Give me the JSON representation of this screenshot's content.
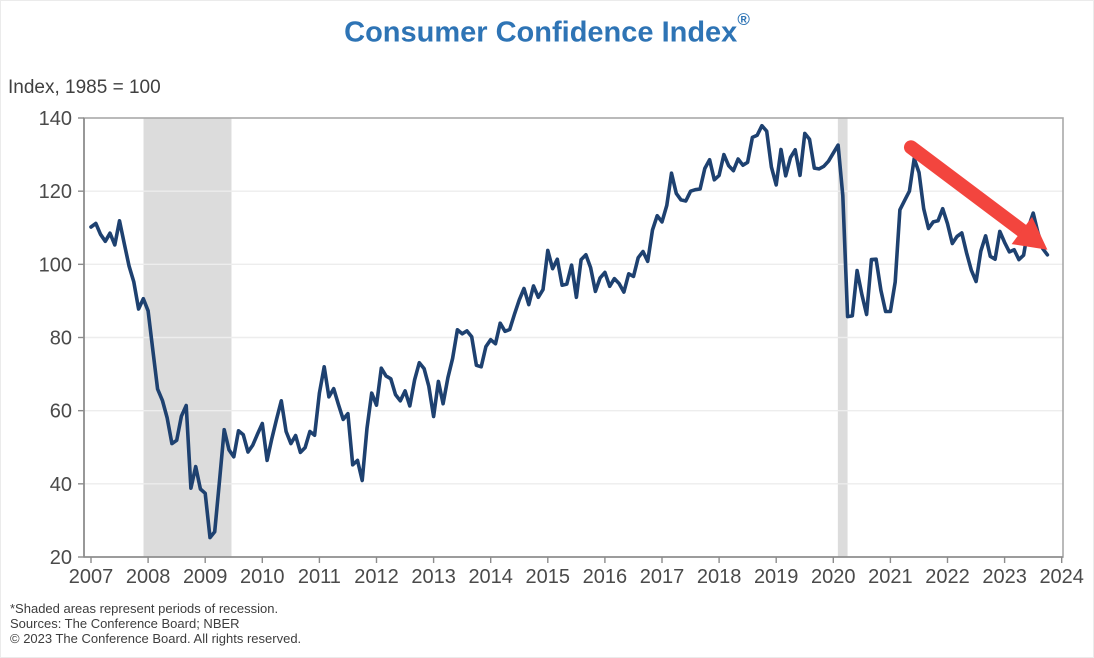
{
  "page": {
    "title": "Consumer Confidence Index",
    "registered_mark": "®",
    "unit_label": "Index, 1985 = 100"
  },
  "footnotes": {
    "line1": "*Shaded areas represent periods of recession.",
    "line2": "Sources: The Conference Board; NBER",
    "line3": "© 2023 The Conference Board. All rights reserved."
  },
  "chart_data": {
    "type": "line",
    "title": "Consumer Confidence Index®",
    "ylabel": "Index, 1985 = 100",
    "xlabel": "",
    "ylim": [
      20,
      140
    ],
    "y_ticks": [
      20,
      40,
      60,
      80,
      100,
      120,
      140
    ],
    "x_ticks": [
      2007,
      2008,
      2009,
      2010,
      2011,
      2012,
      2013,
      2014,
      2015,
      2016,
      2017,
      2018,
      2019,
      2020,
      2021,
      2022,
      2023,
      2024
    ],
    "grid": "horizontal gridlines only",
    "legend": "none",
    "colors": {
      "line": "#1e4170",
      "title": "#2e74b5",
      "arrow": "#f3453e",
      "recession_band": "#dcdcdc",
      "gridline": "#ededed",
      "plot_border": "#a9a9a9",
      "axis": "#8c8c8c",
      "tick_text": "#4a4a4a"
    },
    "series": [
      {
        "name": "Consumer Confidence Index",
        "frequency": "monthly",
        "start_year": 2007,
        "start_month": 1,
        "end_year": 2023,
        "end_month": 10,
        "values": [
          110.2,
          111.2,
          108.2,
          106.3,
          108.5,
          105.3,
          111.9,
          105.6,
          99.5,
          95.2,
          87.8,
          90.6,
          87.3,
          76.4,
          65.9,
          62.8,
          58.1,
          51.0,
          51.9,
          58.5,
          61.4,
          38.8,
          44.7,
          38.6,
          37.4,
          25.3,
          26.9,
          40.8,
          54.8,
          49.3,
          47.4,
          54.5,
          53.4,
          48.7,
          50.6,
          53.6,
          56.5,
          46.4,
          52.3,
          57.7,
          62.7,
          54.3,
          51.0,
          53.2,
          48.6,
          49.9,
          54.3,
          53.3,
          64.8,
          72.0,
          63.8,
          66.0,
          61.7,
          57.6,
          59.2,
          45.2,
          46.4,
          40.9,
          55.2,
          64.8,
          61.5,
          71.6,
          69.5,
          68.7,
          64.4,
          62.7,
          65.4,
          61.3,
          68.4,
          73.1,
          71.5,
          66.7,
          58.4,
          68.0,
          61.9,
          69.0,
          74.3,
          82.1,
          81.0,
          81.8,
          80.2,
          72.4,
          72.0,
          77.5,
          79.4,
          78.3,
          83.9,
          81.7,
          82.2,
          86.4,
          90.3,
          93.4,
          89.0,
          94.1,
          91.0,
          93.1,
          103.8,
          98.8,
          101.4,
          94.3,
          94.6,
          99.8,
          91.0,
          101.3,
          102.6,
          99.1,
          92.6,
          96.3,
          97.8,
          94.0,
          96.1,
          94.7,
          92.4,
          97.4,
          96.7,
          101.8,
          103.5,
          100.8,
          109.4,
          113.3,
          111.6,
          116.1,
          124.9,
          119.4,
          117.6,
          117.3,
          120.0,
          120.4,
          120.6,
          126.2,
          128.6,
          123.1,
          124.3,
          130.0,
          127.0,
          125.6,
          128.8,
          127.1,
          127.9,
          134.7,
          135.3,
          137.9,
          136.4,
          126.6,
          121.7,
          131.4,
          124.2,
          129.2,
          131.3,
          124.3,
          135.8,
          134.2,
          126.3,
          126.1,
          126.8,
          128.2,
          130.4,
          132.6,
          118.8,
          85.7,
          85.9,
          98.3,
          91.7,
          86.3,
          101.3,
          101.4,
          92.9,
          87.1,
          87.1,
          95.2,
          114.9,
          117.5,
          120.0,
          128.9,
          125.1,
          115.2,
          109.8,
          111.6,
          111.9,
          115.2,
          111.1,
          105.7,
          107.6,
          108.6,
          103.2,
          98.4,
          95.3,
          103.6,
          107.8,
          102.2,
          101.4,
          109.0,
          106.0,
          103.4,
          104.0,
          101.3,
          102.5,
          110.1,
          114.0,
          108.7,
          104.3,
          102.6
        ]
      }
    ],
    "recession_bands": [
      {
        "label": "2008-09 recession",
        "start": 2007.92,
        "end": 2009.46
      },
      {
        "label": "2020 recession",
        "start": 2020.08,
        "end": 2020.25
      }
    ],
    "annotation": {
      "type": "arrow",
      "description": "red arrow highlighting recent decline",
      "from": {
        "x": 2021.36,
        "y": 132.0
      },
      "to": {
        "x": 2023.75,
        "y": 104.0
      }
    }
  }
}
